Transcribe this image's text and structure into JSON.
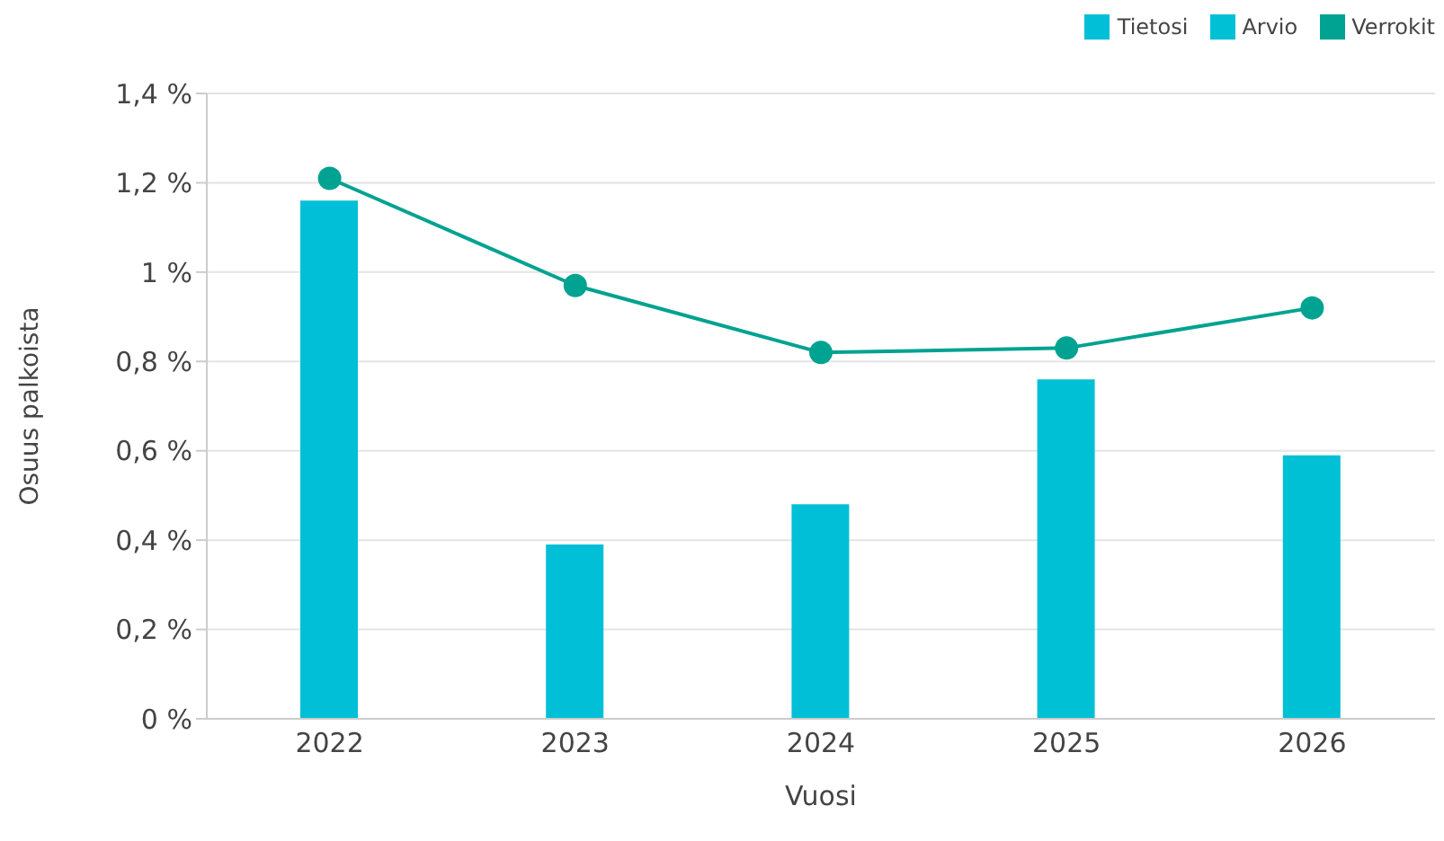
{
  "chart_data": {
    "type": "bar",
    "xlabel": "Vuosi",
    "ylabel": "Osuus palkoista",
    "categories": [
      "2022",
      "2023",
      "2024",
      "2025",
      "2026"
    ],
    "series": [
      {
        "name": "Tietosi",
        "color": "#00bfd6",
        "values": [
          1.16,
          0.39,
          0.48,
          null,
          null
        ]
      },
      {
        "name": "Arvio",
        "color": "#00c0d5",
        "values": [
          null,
          null,
          null,
          0.76,
          0.59
        ]
      },
      {
        "name": "Verrokit",
        "type": "line",
        "color": "#00a291",
        "values": [
          1.21,
          0.97,
          0.82,
          0.83,
          0.92
        ]
      }
    ],
    "stacked": true,
    "ylim": [
      0,
      1.4
    ],
    "yticks": [
      {
        "value": 0,
        "label": "0 %"
      },
      {
        "value": 0.2,
        "label": "0,2 %"
      },
      {
        "value": 0.4,
        "label": "0,4 %"
      },
      {
        "value": 0.6,
        "label": "0,6 %"
      },
      {
        "value": 0.8,
        "label": "0,8 %"
      },
      {
        "value": 1,
        "label": "1 %"
      },
      {
        "value": 1.2,
        "label": "1,2 %"
      },
      {
        "value": 1.4,
        "label": "1,4 %"
      }
    ],
    "grid": "y",
    "legend": "top right",
    "marker": "circle",
    "line_style": "solid"
  }
}
